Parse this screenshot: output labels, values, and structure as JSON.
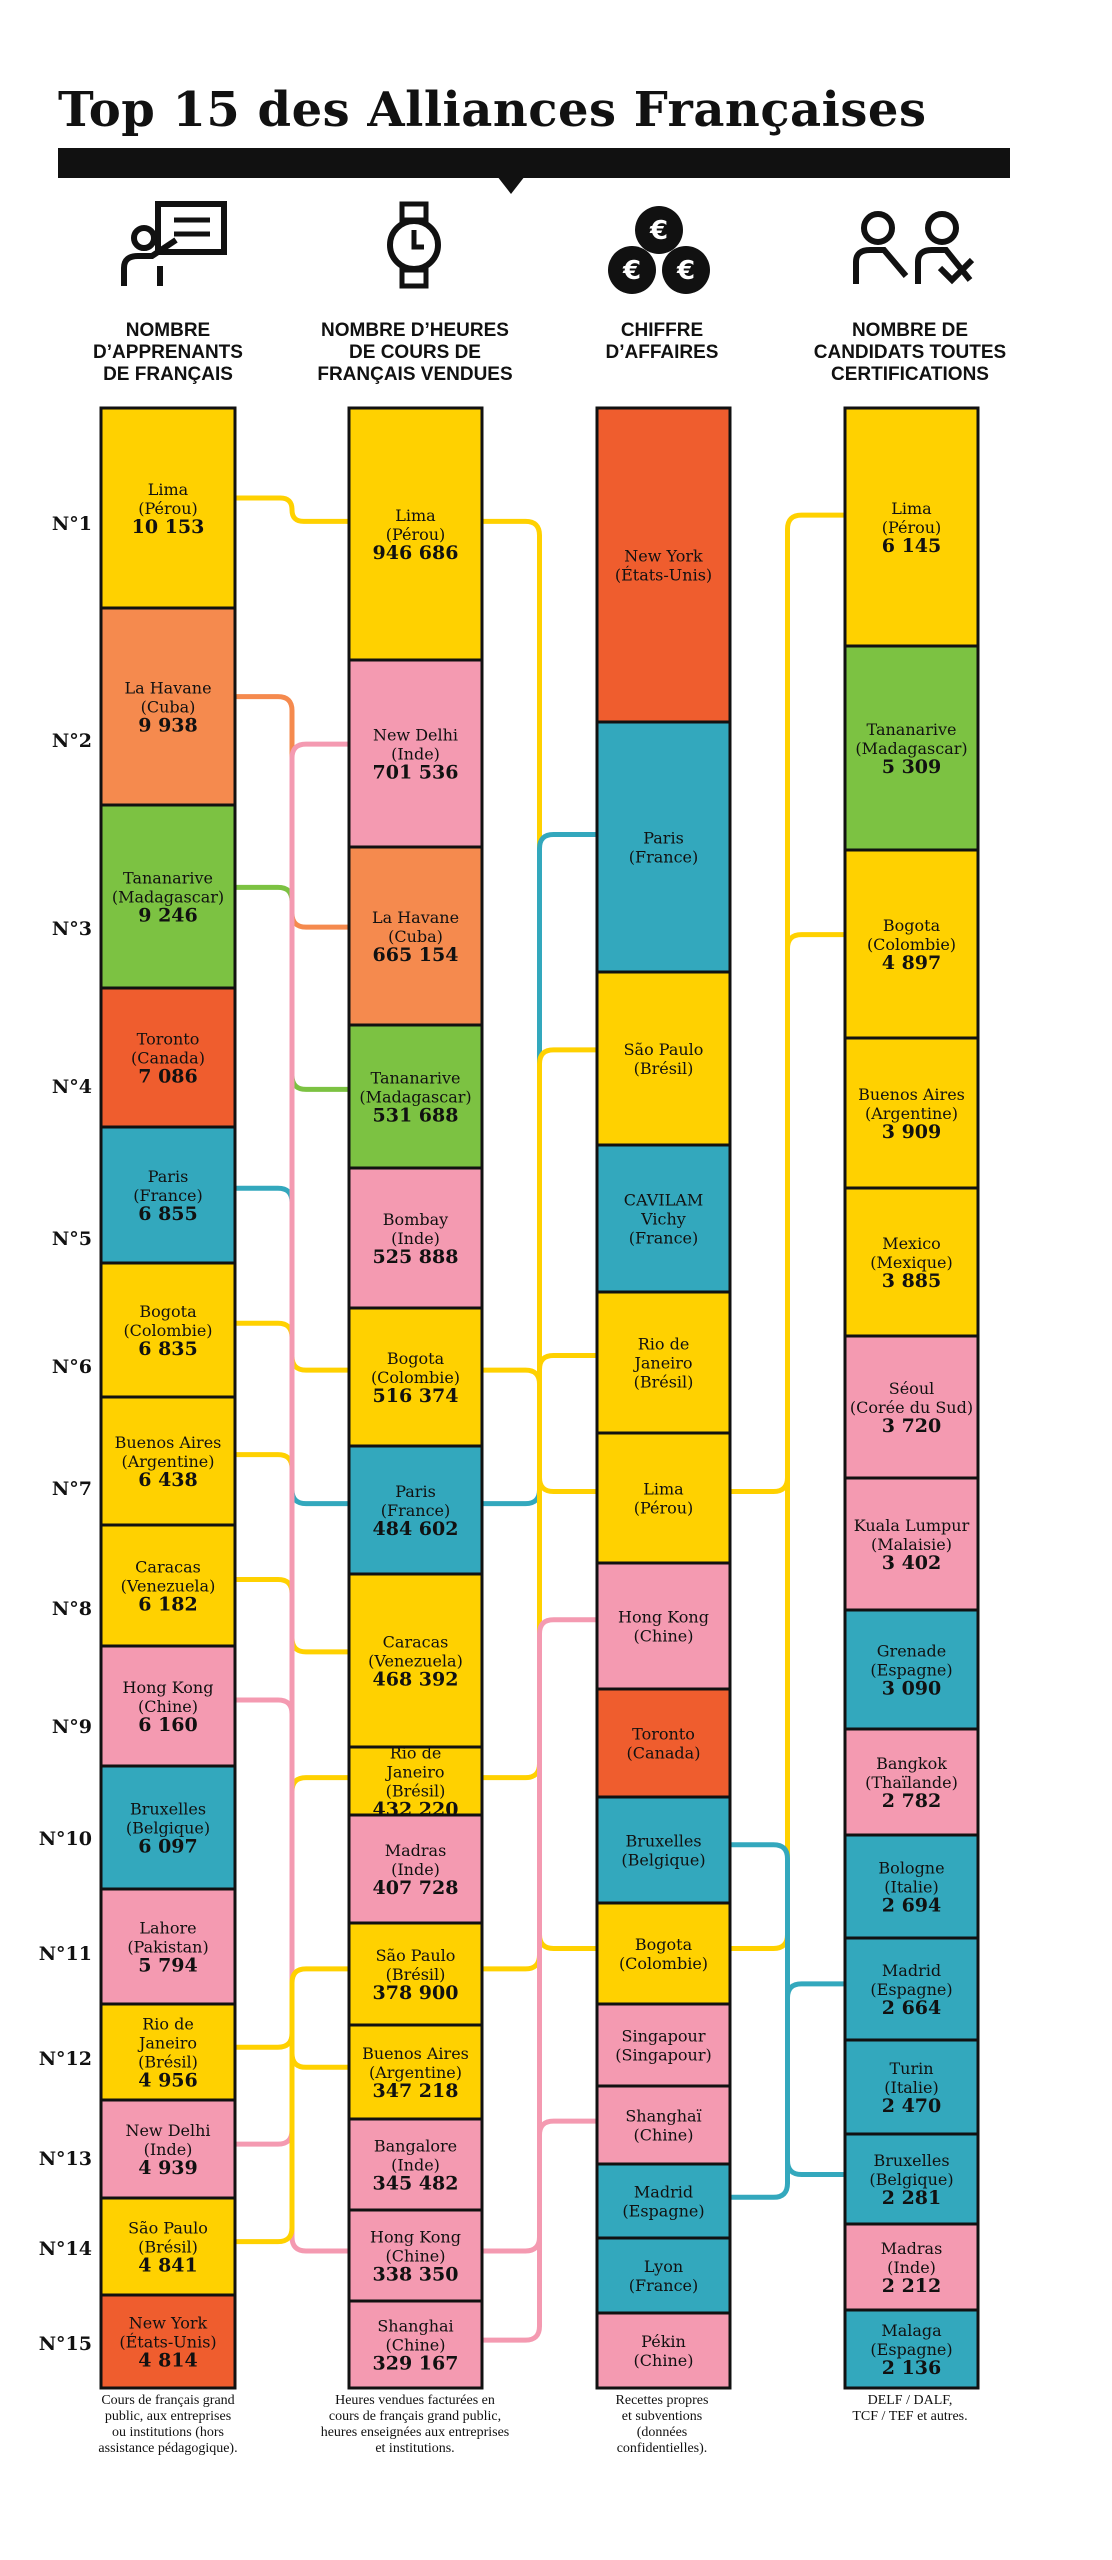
{
  "title": "Top 15 des Alliances Françaises",
  "columns": [
    {
      "header": "NOMBRE\nD’APPRENANTS\nDE FRANÇAIS",
      "icon": "teacher-board-icon",
      "footnote": "Cours de français grand\npublic, aux entreprises\nou institutions (hors\nassistance pédagogique)."
    },
    {
      "header": "NOMBRE D’HEURES\nDE COURS DE\nFRANÇAIS VENDUES",
      "icon": "watch-icon",
      "footnote": "Heures vendues facturées en\ncours de français grand public,\nheures enseignées aux entreprises\net institutions."
    },
    {
      "header": "CHIFFRE\nD’AFFAIRES",
      "icon": "euro-coins-icon",
      "footnote": "Recettes propres\net subventions\n(données\nconfidentielles)."
    },
    {
      "header": "NOMBRE DE\nCANDIDATS TOUTES\nCERTIFICATIONS",
      "icon": "candidates-icon",
      "footnote": "DELF / DALF,\nTCF / TEF et autres."
    }
  ],
  "ranks": [
    "N°1",
    "N°2",
    "N°3",
    "N°4",
    "N°5",
    "N°6",
    "N°7",
    "N°8",
    "N°9",
    "N°10",
    "N°11",
    "N°12",
    "N°13",
    "N°14",
    "N°15"
  ],
  "colors": {
    "yellow": "#FFD100",
    "orange": "#F58A4E",
    "green": "#7CC242",
    "red": "#EF5D2E",
    "blue": "#33A8BD",
    "pink": "#F49AB1",
    "dark": "#111111"
  },
  "chart_data": {
    "type": "table",
    "series": [
      {
        "name": "NOMBRE D’APPRENANTS DE FRANÇAIS",
        "entries": [
          {
            "city": "Lima",
            "country": "(Pérou)",
            "value": "10 153",
            "color": "yellow"
          },
          {
            "city": "La Havane",
            "country": "(Cuba)",
            "value": "9 938",
            "color": "orange"
          },
          {
            "city": "Tananarive",
            "country": "(Madagascar)",
            "value": "9 246",
            "color": "green"
          },
          {
            "city": "Toronto",
            "country": "(Canada)",
            "value": "7 086",
            "color": "red"
          },
          {
            "city": "Paris",
            "country": "(France)",
            "value": "6 855",
            "color": "blue"
          },
          {
            "city": "Bogota",
            "country": "(Colombie)",
            "value": "6 835",
            "color": "yellow"
          },
          {
            "city": "Buenos Aires",
            "country": "(Argentine)",
            "value": "6 438",
            "color": "yellow"
          },
          {
            "city": "Caracas",
            "country": "(Venezuela)",
            "value": "6 182",
            "color": "yellow"
          },
          {
            "city": "Hong Kong",
            "country": "(Chine)",
            "value": "6 160",
            "color": "pink"
          },
          {
            "city": "Bruxelles",
            "country": "(Belgique)",
            "value": "6 097",
            "color": "blue"
          },
          {
            "city": "Lahore",
            "country": "(Pakistan)",
            "value": "5 794",
            "color": "pink"
          },
          {
            "city": "Rio de\nJaneiro",
            "country": "(Brésil)",
            "value": "4 956",
            "color": "yellow"
          },
          {
            "city": "New Delhi",
            "country": "(Inde)",
            "value": "4 939",
            "color": "pink"
          },
          {
            "city": "São Paulo",
            "country": "(Brésil)",
            "value": "4 841",
            "color": "yellow"
          },
          {
            "city": "New York",
            "country": "(États-Unis)",
            "value": "4 814",
            "color": "red"
          }
        ]
      },
      {
        "name": "NOMBRE D’HEURES DE COURS DE FRANÇAIS VENDUES",
        "entries": [
          {
            "city": "Lima",
            "country": "(Pérou)",
            "value": "946 686",
            "color": "yellow"
          },
          {
            "city": "New Delhi",
            "country": "(Inde)",
            "value": "701 536",
            "color": "pink"
          },
          {
            "city": "La Havane",
            "country": "(Cuba)",
            "value": "665 154",
            "color": "orange"
          },
          {
            "city": "Tananarive",
            "country": "(Madagascar)",
            "value": "531 688",
            "color": "green"
          },
          {
            "city": "Bombay",
            "country": "(Inde)",
            "value": "525 888",
            "color": "pink"
          },
          {
            "city": "Bogota",
            "country": "(Colombie)",
            "value": "516 374",
            "color": "yellow"
          },
          {
            "city": "Paris",
            "country": "(France)",
            "value": "484 602",
            "color": "blue"
          },
          {
            "city": "Caracas",
            "country": "(Venezuela)",
            "value": "468 392",
            "color": "yellow"
          },
          {
            "city": "Rio de\nJaneiro",
            "country": "(Brésil)",
            "value": "432 220",
            "color": "yellow"
          },
          {
            "city": "Madras",
            "country": "(Inde)",
            "value": "407 728",
            "color": "pink"
          },
          {
            "city": "São Paulo",
            "country": "(Brésil)",
            "value": "378 900",
            "color": "yellow"
          },
          {
            "city": "Buenos Aires",
            "country": "(Argentine)",
            "value": "347 218",
            "color": "yellow"
          },
          {
            "city": "Bangalore",
            "country": "(Inde)",
            "value": "345 482",
            "color": "pink"
          },
          {
            "city": "Hong Kong",
            "country": "(Chine)",
            "value": "338 350",
            "color": "pink"
          },
          {
            "city": "Shanghai",
            "country": "(Chine)",
            "value": "329 167",
            "color": "pink"
          }
        ]
      },
      {
        "name": "CHIFFRE D’AFFAIRES",
        "entries": [
          {
            "city": "New York",
            "country": "(États-Unis)",
            "value": "",
            "color": "red"
          },
          {
            "city": "Paris",
            "country": "(France)",
            "value": "",
            "color": "blue"
          },
          {
            "city": "São Paulo",
            "country": "(Brésil)",
            "value": "",
            "color": "yellow"
          },
          {
            "city": "CAVILAM\nVichy",
            "country": "(France)",
            "value": "",
            "color": "blue"
          },
          {
            "city": "Rio de\nJaneiro",
            "country": "(Brésil)",
            "value": "",
            "color": "yellow"
          },
          {
            "city": "Lima",
            "country": "(Pérou)",
            "value": "",
            "color": "yellow"
          },
          {
            "city": "Hong Kong",
            "country": "(Chine)",
            "value": "",
            "color": "pink"
          },
          {
            "city": "Toronto",
            "country": "(Canada)",
            "value": "",
            "color": "red"
          },
          {
            "city": "Bruxelles",
            "country": "(Belgique)",
            "value": "",
            "color": "blue"
          },
          {
            "city": "Bogota",
            "country": "(Colombie)",
            "value": "",
            "color": "yellow"
          },
          {
            "city": "Singapour",
            "country": "(Singapour)",
            "value": "",
            "color": "pink"
          },
          {
            "city": "Shanghaï",
            "country": "(Chine)",
            "value": "",
            "color": "pink"
          },
          {
            "city": "Madrid",
            "country": "(Espagne)",
            "value": "",
            "color": "blue"
          },
          {
            "city": "Lyon",
            "country": "(France)",
            "value": "",
            "color": "blue"
          },
          {
            "city": "Pékin",
            "country": "(Chine)",
            "value": "",
            "color": "pink"
          }
        ]
      },
      {
        "name": "NOMBRE DE CANDIDATS TOUTES CERTIFICATIONS",
        "entries": [
          {
            "city": "Lima",
            "country": "(Pérou)",
            "value": "6 145",
            "color": "yellow"
          },
          {
            "city": "Tananarive",
            "country": "(Madagascar)",
            "value": "5 309",
            "color": "green"
          },
          {
            "city": "Bogota",
            "country": "(Colombie)",
            "value": "4 897",
            "color": "yellow"
          },
          {
            "city": "Buenos Aires",
            "country": "(Argentine)",
            "value": "3 909",
            "color": "yellow"
          },
          {
            "city": "Mexico",
            "country": "(Mexique)",
            "value": "3 885",
            "color": "yellow"
          },
          {
            "city": "Séoul",
            "country": "(Corée du Sud)",
            "value": "3 720",
            "color": "pink"
          },
          {
            "city": "Kuala Lumpur",
            "country": "(Malaisie)",
            "value": "3 402",
            "color": "pink"
          },
          {
            "city": "Grenade",
            "country": "(Espagne)",
            "value": "3 090",
            "color": "blue"
          },
          {
            "city": "Bangkok",
            "country": "(Thaïlande)",
            "value": "2 782",
            "color": "pink"
          },
          {
            "city": "Bologne",
            "country": "(Italie)",
            "value": "2 694",
            "color": "blue"
          },
          {
            "city": "Madrid",
            "country": "(Espagne)",
            "value": "2 664",
            "color": "blue"
          },
          {
            "city": "Turin",
            "country": "(Italie)",
            "value": "2 470",
            "color": "blue"
          },
          {
            "city": "Bruxelles",
            "country": "(Belgique)",
            "value": "2 281",
            "color": "blue"
          },
          {
            "city": "Madras",
            "country": "(Inde)",
            "value": "2 212",
            "color": "pink"
          },
          {
            "city": "Malaga",
            "country": "(Espagne)",
            "value": "2 136",
            "color": "blue"
          }
        ]
      }
    ],
    "connectors": [
      {
        "name": "lima-1-2",
        "from": [
          0,
          0
        ],
        "to": [
          1,
          0
        ],
        "color": "yellow"
      },
      {
        "name": "lahavane-1-2",
        "from": [
          0,
          1
        ],
        "to": [
          1,
          2
        ],
        "color": "orange"
      },
      {
        "name": "tananarive-1-2",
        "from": [
          0,
          2
        ],
        "to": [
          1,
          3
        ],
        "color": "green"
      },
      {
        "name": "paris-1-2",
        "from": [
          0,
          4
        ],
        "to": [
          1,
          6
        ],
        "color": "blue"
      },
      {
        "name": "bogota-1-2",
        "from": [
          0,
          5
        ],
        "to": [
          1,
          5
        ],
        "color": "yellow"
      },
      {
        "name": "buenosaires-1-2",
        "from": [
          0,
          6
        ],
        "to": [
          1,
          11
        ],
        "color": "yellow"
      },
      {
        "name": "caracas-1-2",
        "from": [
          0,
          7
        ],
        "to": [
          1,
          7
        ],
        "color": "yellow"
      },
      {
        "name": "hongkong-1-2",
        "from": [
          0,
          8
        ],
        "to": [
          1,
          13
        ],
        "color": "pink"
      },
      {
        "name": "rio-1-2",
        "from": [
          0,
          11
        ],
        "to": [
          1,
          8
        ],
        "color": "yellow"
      },
      {
        "name": "newdelhi-1-2",
        "from": [
          0,
          12
        ],
        "to": [
          1,
          1
        ],
        "color": "pink"
      },
      {
        "name": "saopaulo-1-2",
        "from": [
          0,
          13
        ],
        "to": [
          1,
          10
        ],
        "color": "yellow"
      },
      {
        "name": "lima-2-3",
        "from": [
          1,
          0
        ],
        "to": [
          2,
          5
        ],
        "color": "yellow"
      },
      {
        "name": "paris-2-3",
        "from": [
          1,
          6
        ],
        "to": [
          2,
          1
        ],
        "color": "blue"
      },
      {
        "name": "bogota-2-3",
        "from": [
          1,
          5
        ],
        "to": [
          2,
          9
        ],
        "color": "yellow"
      },
      {
        "name": "rio-2-3",
        "from": [
          1,
          8
        ],
        "to": [
          2,
          4
        ],
        "color": "yellow"
      },
      {
        "name": "saopaulo-2-3",
        "from": [
          1,
          10
        ],
        "to": [
          2,
          2
        ],
        "color": "yellow"
      },
      {
        "name": "hongkong-2-3",
        "from": [
          1,
          13
        ],
        "to": [
          2,
          6
        ],
        "color": "pink"
      },
      {
        "name": "shanghai-2-3",
        "from": [
          1,
          14
        ],
        "to": [
          2,
          11
        ],
        "color": "pink"
      },
      {
        "name": "lima-3-4",
        "from": [
          2,
          5
        ],
        "to": [
          3,
          0
        ],
        "color": "yellow"
      },
      {
        "name": "bogota-3-4",
        "from": [
          2,
          9
        ],
        "to": [
          3,
          2
        ],
        "color": "yellow"
      },
      {
        "name": "bruxelles-3-4",
        "from": [
          2,
          8
        ],
        "to": [
          3,
          12
        ],
        "color": "blue"
      },
      {
        "name": "madrid-3-4",
        "from": [
          2,
          12
        ],
        "to": [
          3,
          10
        ],
        "color": "blue"
      }
    ]
  }
}
